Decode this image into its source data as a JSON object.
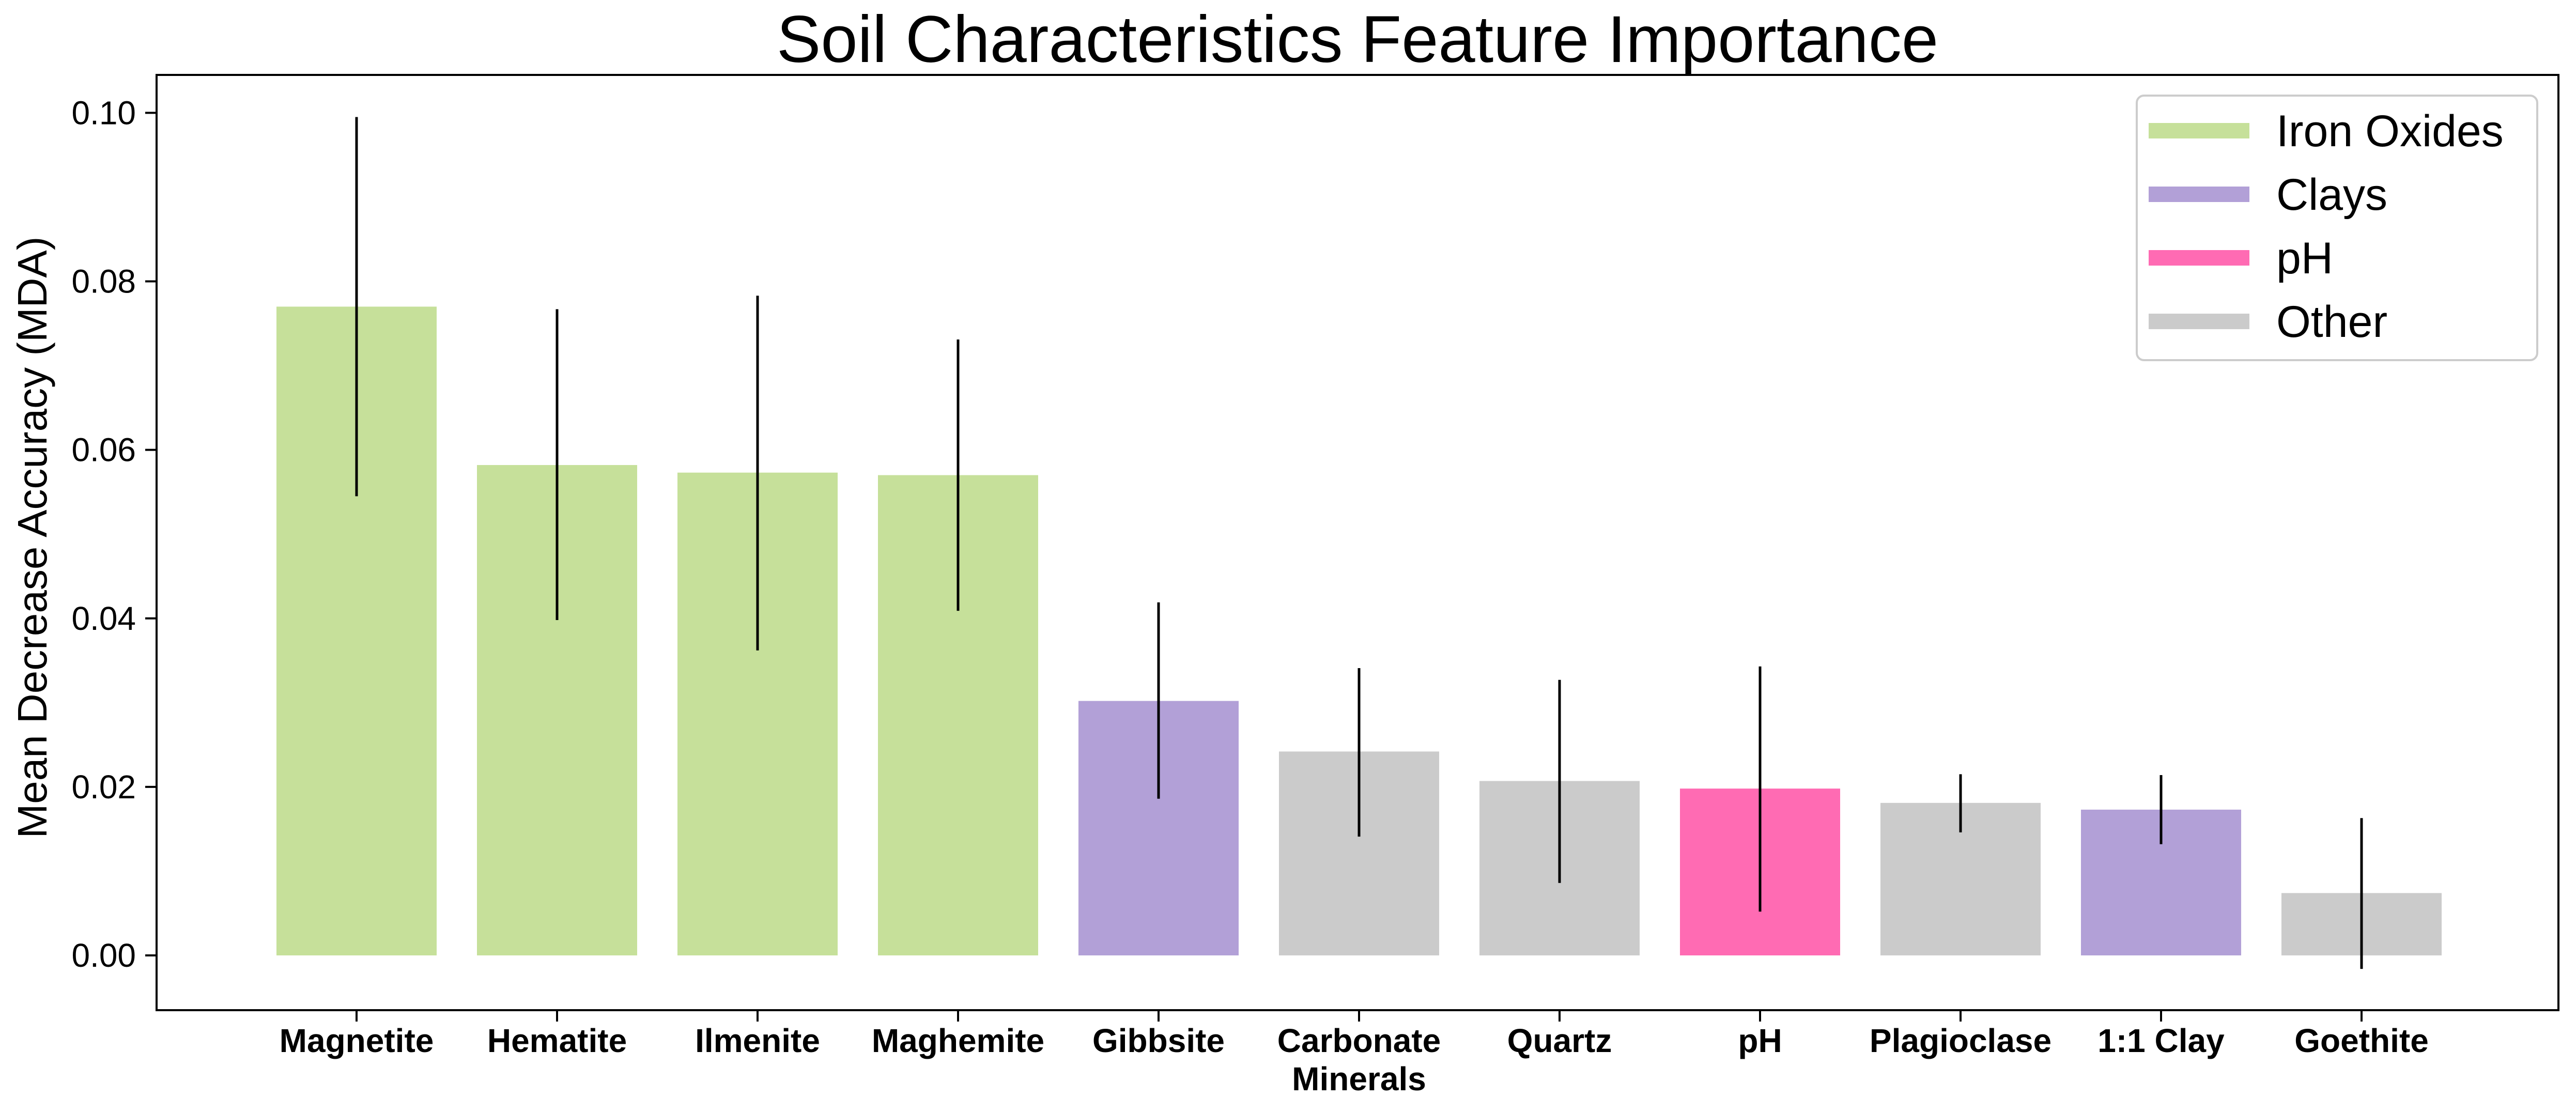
{
  "colors": {
    "iron_oxides": "#c6e09a",
    "clays": "#b2a0d7",
    "ph": "#ff6bb3",
    "other": "#cbcbcb",
    "error_bar": "#000000",
    "axes": "#000000",
    "legend_border": "#cccccc"
  },
  "chart_data": {
    "type": "bar",
    "title": "Soil Characteristics Feature Importance",
    "xlabel": "",
    "ylabel": "Mean Decrease Accuracy (MDA)",
    "ylim": [
      -0.0065,
      0.1045
    ],
    "yticks": [
      "0.00",
      "0.02",
      "0.04",
      "0.06",
      "0.08",
      "0.10"
    ],
    "grid": false,
    "legend_position": "top-right",
    "legend": [
      {
        "label": "Iron Oxides",
        "group": "iron_oxides"
      },
      {
        "label": "Clays",
        "group": "clays"
      },
      {
        "label": "pH",
        "group": "ph"
      },
      {
        "label": "Other",
        "group": "other"
      }
    ],
    "categories": [
      [
        "Magnetite"
      ],
      [
        "Hematite"
      ],
      [
        "Ilmenite"
      ],
      [
        "Maghemite"
      ],
      [
        "Gibbsite"
      ],
      [
        "Carbonate",
        "Minerals"
      ],
      [
        "Quartz"
      ],
      [
        "pH"
      ],
      [
        "Plagioclase"
      ],
      [
        "1:1 Clay"
      ],
      [
        "Goethite"
      ]
    ],
    "groups": [
      "iron_oxides",
      "iron_oxides",
      "iron_oxides",
      "iron_oxides",
      "clays",
      "other",
      "other",
      "ph",
      "other",
      "clays",
      "other"
    ],
    "values": [
      0.077,
      0.0582,
      0.0573,
      0.057,
      0.0302,
      0.0242,
      0.0207,
      0.0198,
      0.0181,
      0.0173,
      0.0074
    ],
    "error_low": [
      0.0545,
      0.0398,
      0.0362,
      0.0409,
      0.0186,
      0.0141,
      0.0086,
      0.0052,
      0.0146,
      0.0132,
      -0.0016
    ],
    "error_high": [
      0.0995,
      0.0767,
      0.0783,
      0.0731,
      0.0419,
      0.0341,
      0.0327,
      0.0343,
      0.0215,
      0.0214,
      0.0163
    ]
  }
}
